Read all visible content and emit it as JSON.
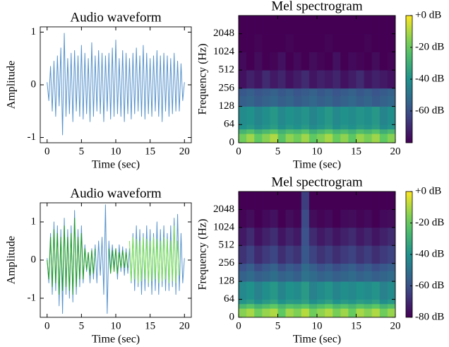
{
  "chart_data": [
    {
      "type": "line",
      "title": "Audio waveform",
      "xlabel": "Time (sec)",
      "ylabel": "Amplitude",
      "x": [
        0,
        0.25,
        0.5,
        0.75,
        1,
        1.25,
        1.5,
        1.75,
        2,
        2.25,
        2.5,
        2.75,
        3,
        3.25,
        3.5,
        3.75,
        4,
        4.25,
        4.5,
        4.75,
        5,
        5.25,
        5.5,
        5.75,
        6,
        6.25,
        6.5,
        6.75,
        7,
        7.25,
        7.5,
        7.75,
        8,
        8.25,
        8.5,
        8.75,
        9,
        9.25,
        9.5,
        9.75,
        10,
        10.25,
        10.5,
        10.75,
        11,
        11.25,
        11.5,
        11.75,
        12,
        12.25,
        12.5,
        12.75,
        13,
        13.25,
        13.5,
        13.75,
        14,
        14.25,
        14.5,
        14.75,
        15,
        15.25,
        15.5,
        15.75,
        16,
        16.25,
        16.5,
        16.75,
        17,
        17.25,
        17.5,
        17.75,
        18,
        18.25,
        18.5,
        18.75,
        19,
        19.25,
        19.5,
        19.75,
        20
      ],
      "series": [
        {
          "color": "#5a94cc",
          "values": [
            0.05,
            -0.3,
            0.35,
            -0.5,
            0.45,
            -0.6,
            0.55,
            -0.4,
            0.7,
            -0.95,
            0.98,
            -0.6,
            0.5,
            -0.55,
            0.6,
            -0.7,
            0.65,
            -0.5,
            0.55,
            -0.6,
            0.75,
            -0.65,
            0.6,
            -0.55,
            0.5,
            -0.7,
            0.8,
            -0.6,
            0.55,
            -0.5,
            0.65,
            -0.55,
            0.6,
            -0.7,
            0.55,
            -0.5,
            0.6,
            -0.65,
            0.7,
            -0.6,
            0.85,
            -0.55,
            0.5,
            -0.6,
            0.65,
            -0.7,
            0.6,
            -0.55,
            0.5,
            -0.65,
            0.6,
            -0.55,
            0.7,
            -0.5,
            0.55,
            -0.6,
            0.75,
            -0.65,
            0.6,
            -0.55,
            0.5,
            -0.6,
            0.55,
            -0.5,
            0.65,
            -0.6,
            0.55,
            -0.7,
            0.6,
            -0.5,
            0.55,
            -0.6,
            0.5,
            -0.55,
            0.6,
            -0.5,
            0.45,
            -0.5,
            0.4,
            -0.3,
            0.05
          ]
        }
      ],
      "xlim": [
        -1,
        21
      ],
      "xticks": [
        0,
        5,
        10,
        15,
        20
      ],
      "ylim": [
        -1.1,
        1.1
      ],
      "yticks": [
        -1,
        0,
        1
      ]
    },
    {
      "type": "heatmap",
      "title": "Mel spectrogram",
      "xlabel": "Time (sec)",
      "ylabel": "Frequency (Hz)",
      "colormap": "viridis",
      "clim": [
        -80,
        0
      ],
      "yscale": "symlog",
      "linthresh": 64,
      "base": 2,
      "x_edges": [
        0,
        1,
        2,
        3,
        4,
        5,
        6,
        7,
        8,
        9,
        10,
        11,
        12,
        13,
        14,
        15,
        16,
        17,
        18,
        19,
        20
      ],
      "y_edges": [
        0,
        32,
        48,
        64,
        128,
        192,
        256,
        512,
        1024,
        2048,
        4096
      ],
      "values": [
        [
          -18,
          -12,
          -20,
          -15,
          -10,
          -22,
          -14,
          -18,
          -12,
          -20,
          -16,
          -11,
          -19,
          -14,
          -21,
          -13,
          -17,
          -12,
          -20,
          -15
        ],
        [
          -28,
          -24,
          -30,
          -26,
          -22,
          -29,
          -25,
          -27,
          -23,
          -30,
          -26,
          -22,
          -28,
          -25,
          -29,
          -24,
          -27,
          -23,
          -30,
          -26
        ],
        [
          -40,
          -38,
          -42,
          -39,
          -36,
          -41,
          -38,
          -40,
          -37,
          -42,
          -39,
          -36,
          -41,
          -38,
          -40,
          -37,
          -39,
          -36,
          -42,
          -39
        ],
        [
          -42,
          -40,
          -44,
          -41,
          -38,
          -43,
          -40,
          -42,
          -39,
          -44,
          -41,
          -38,
          -43,
          -40,
          -42,
          -39,
          -41,
          -38,
          -44,
          -41
        ],
        [
          -56,
          -54,
          -57,
          -55,
          -53,
          -56,
          -54,
          -57,
          -55,
          -53,
          -56,
          -54,
          -57,
          -55,
          -53,
          -56,
          -54,
          -57,
          -55,
          -53
        ],
        [
          -58,
          -56,
          -59,
          -57,
          -55,
          -58,
          -56,
          -59,
          -57,
          -55,
          -58,
          -56,
          -59,
          -57,
          -55,
          -58,
          -56,
          -59,
          -57,
          -55
        ],
        [
          -76,
          -72,
          -75,
          -70,
          -74,
          -71,
          -76,
          -73,
          -70,
          -75,
          -72,
          -74,
          -71,
          -76,
          -73,
          -70,
          -75,
          -72,
          -74,
          -76
        ],
        [
          -78,
          -80,
          -77,
          -80,
          -79,
          -76,
          -80,
          -78,
          -80,
          -77,
          -79,
          -80,
          -76,
          -80,
          -78,
          -79,
          -80,
          -77,
          -80,
          -79
        ],
        [
          -80,
          -80,
          -79,
          -80,
          -80,
          -80,
          -79,
          -80,
          -80,
          -80,
          -80,
          -79,
          -80,
          -80,
          -80,
          -80,
          -79,
          -80,
          -80,
          -80
        ],
        [
          -80,
          -80,
          -80,
          -80,
          -80,
          -80,
          -80,
          -80,
          -80,
          -80,
          -80,
          -80,
          -80,
          -80,
          -80,
          -80,
          -80,
          -80,
          -80,
          -80
        ]
      ],
      "xlim": [
        0,
        20
      ],
      "xticks": [
        0,
        5,
        10,
        15,
        20
      ],
      "ylim": [
        0,
        4096
      ],
      "yticks": [
        0,
        64,
        128,
        256,
        512,
        1024,
        2048
      ],
      "cticks": [
        {
          "value": 0,
          "label": "+0 dB"
        },
        {
          "value": -20,
          "label": "-20 dB"
        },
        {
          "value": -40,
          "label": "-40 dB"
        },
        {
          "value": -60,
          "label": "-60 dB"
        }
      ]
    },
    {
      "type": "line",
      "title": "Audio waveform",
      "xlabel": "Time (sec)",
      "ylabel": "Amplitude",
      "x": [
        0,
        0.25,
        0.5,
        0.75,
        1,
        1.25,
        1.5,
        1.75,
        2,
        2.25,
        2.5,
        2.75,
        3,
        3.25,
        3.5,
        3.75,
        4,
        4.25,
        4.5,
        4.75,
        5,
        5.25,
        5.5,
        5.75,
        6,
        6.25,
        6.5,
        6.75,
        7,
        7.25,
        7.5,
        7.75,
        8,
        8.25,
        8.5,
        8.75,
        9,
        9.25,
        9.5,
        9.75,
        10,
        10.25,
        10.5,
        10.75,
        11,
        11.25,
        11.5,
        11.75,
        12,
        12.25,
        12.5,
        12.75,
        13,
        13.25,
        13.5,
        13.75,
        14,
        14.25,
        14.5,
        14.75,
        15,
        15.25,
        15.5,
        15.75,
        16,
        16.25,
        16.5,
        16.75,
        17,
        17.25,
        17.5,
        17.75,
        18,
        18.25,
        18.5,
        18.75,
        19,
        19.25,
        19.5,
        19.75,
        20
      ],
      "series": [
        {
          "color": "#5a94cc",
          "values": [
            0.05,
            -0.6,
            0.7,
            -0.9,
            1.0,
            -0.8,
            0.9,
            -1.2,
            0.8,
            -1.4,
            1.1,
            -0.9,
            0.8,
            -1.0,
            0.9,
            -1.1,
            1.3,
            -0.9,
            0.8,
            -0.7,
            0.9,
            -0.6,
            0.4,
            -0.3,
            0.2,
            -0.6,
            0.3,
            -0.5,
            0.4,
            -0.6,
            0.5,
            -0.4,
            0.6,
            -0.9,
            1.45,
            -1.4,
            0.5,
            -0.3,
            0.4,
            -0.2,
            0.3,
            -0.5,
            0.4,
            -0.3,
            0.35,
            -0.4,
            0.3,
            -0.35,
            0.3,
            -0.6,
            0.7,
            -0.8,
            0.9,
            -0.7,
            0.8,
            -0.9,
            0.7,
            -0.8,
            0.9,
            -0.7,
            0.8,
            -0.9,
            0.7,
            -0.8,
            1.0,
            -0.9,
            0.8,
            -0.7,
            0.9,
            -0.8,
            0.7,
            -0.8,
            0.9,
            -0.7,
            1.1,
            -0.9,
            1.2,
            -0.8,
            0.7,
            -0.6,
            0.05
          ]
        },
        {
          "color": "#1f9e1f",
          "values": [
            0.0,
            -0.5,
            0.6,
            -0.7,
            0.8,
            -0.6,
            0.7,
            -0.9,
            0.6,
            -0.8,
            0.9,
            -0.7,
            0.6,
            -0.8,
            0.7,
            -0.9,
            1.1,
            -0.7,
            0.6,
            -0.5,
            0.7,
            -0.5,
            0.3,
            -0.25,
            0.2,
            -0.4,
            0.25,
            -0.35,
            0.3,
            null,
            null,
            null,
            null,
            null,
            null,
            null,
            0.3,
            -0.35,
            0.25,
            -0.3,
            0.3,
            -0.35,
            0.2,
            -0.2,
            0.25,
            -0.2,
            0.2,
            -0.2,
            null,
            null,
            null,
            null,
            null,
            null,
            null,
            null,
            null,
            null,
            null,
            null,
            null,
            null,
            null,
            null,
            null,
            null,
            null,
            null,
            null,
            null,
            null,
            null,
            null,
            null,
            null,
            null,
            null,
            null,
            null,
            null,
            null
          ]
        },
        {
          "color": "#76e24a",
          "values": [
            null,
            null,
            null,
            null,
            null,
            null,
            null,
            null,
            null,
            null,
            null,
            null,
            null,
            null,
            null,
            null,
            null,
            null,
            null,
            null,
            null,
            null,
            null,
            null,
            null,
            null,
            null,
            null,
            null,
            null,
            null,
            null,
            null,
            null,
            null,
            null,
            null,
            null,
            null,
            null,
            null,
            null,
            null,
            null,
            null,
            null,
            null,
            null,
            0.5,
            -0.55,
            0.6,
            -0.5,
            0.55,
            -0.6,
            0.5,
            -0.55,
            0.6,
            -0.5,
            0.55,
            -0.6,
            0.5,
            -0.55,
            0.6,
            -0.5,
            0.55,
            -0.6,
            0.5,
            -0.55,
            0.6,
            -0.5,
            0.55,
            -0.6,
            0.5,
            -0.55,
            0.9,
            -0.6,
            0.5,
            -0.4,
            null,
            null,
            null
          ]
        }
      ],
      "xlim": [
        -1,
        21
      ],
      "xticks": [
        0,
        5,
        10,
        15,
        20
      ],
      "ylim": [
        -1.5,
        1.5
      ],
      "yticks": [
        -1,
        0,
        1
      ]
    },
    {
      "type": "heatmap",
      "title": "Mel spectrogram",
      "xlabel": "Time (sec)",
      "ylabel": "Frequency (Hz)",
      "colormap": "viridis",
      "clim": [
        -80,
        0
      ],
      "yscale": "symlog",
      "linthresh": 64,
      "base": 2,
      "x_edges": [
        0,
        1,
        2,
        3,
        4,
        5,
        6,
        7,
        8,
        9,
        10,
        11,
        12,
        13,
        14,
        15,
        16,
        17,
        18,
        19,
        20
      ],
      "y_edges": [
        0,
        32,
        48,
        64,
        128,
        192,
        256,
        512,
        1024,
        2048,
        4096
      ],
      "values": [
        [
          -15,
          -11,
          -18,
          -13,
          -10,
          -20,
          -12,
          -16,
          -9,
          -18,
          -14,
          -10,
          -17,
          -12,
          -19,
          -11,
          -15,
          -10,
          -18,
          -13
        ],
        [
          -26,
          -22,
          -28,
          -24,
          -20,
          -27,
          -23,
          -25,
          -21,
          -28,
          -24,
          -20,
          -26,
          -23,
          -27,
          -22,
          -25,
          -21,
          -28,
          -24
        ],
        [
          -39,
          -36,
          -41,
          -37,
          -34,
          -40,
          -37,
          -38,
          -35,
          -41,
          -38,
          -35,
          -40,
          -37,
          -39,
          -36,
          -38,
          -35,
          -41,
          -38
        ],
        [
          -43,
          -40,
          -45,
          -41,
          -38,
          -44,
          -40,
          -42,
          -37,
          -45,
          -42,
          -39,
          -44,
          -41,
          -43,
          -40,
          -42,
          -39,
          -45,
          -42
        ],
        [
          -55,
          -52,
          -56,
          -54,
          -51,
          -55,
          -53,
          -56,
          -50,
          -52,
          -55,
          -53,
          -56,
          -54,
          -52,
          -55,
          -53,
          -56,
          -54,
          -52
        ],
        [
          -60,
          -56,
          -62,
          -58,
          -55,
          -61,
          -57,
          -60,
          -52,
          -56,
          -60,
          -57,
          -61,
          -58,
          -56,
          -60,
          -57,
          -61,
          -58,
          -56
        ],
        [
          -68,
          -64,
          -70,
          -66,
          -63,
          -69,
          -65,
          -68,
          -58,
          -64,
          -68,
          -65,
          -69,
          -66,
          -64,
          -68,
          -65,
          -69,
          -66,
          -64
        ],
        [
          -74,
          -70,
          -76,
          -72,
          -69,
          -75,
          -71,
          -74,
          -60,
          -70,
          -74,
          -71,
          -75,
          -72,
          -70,
          -74,
          -71,
          -75,
          -72,
          -70
        ],
        [
          -79,
          -77,
          -80,
          -78,
          -76,
          -80,
          -77,
          -79,
          -62,
          -77,
          -79,
          -78,
          -80,
          -78,
          -77,
          -79,
          -78,
          -80,
          -78,
          -77
        ],
        [
          -80,
          -80,
          -80,
          -80,
          -80,
          -80,
          -80,
          -80,
          -65,
          -80,
          -80,
          -80,
          -80,
          -80,
          -80,
          -80,
          -80,
          -80,
          -80,
          -80
        ]
      ],
      "xlim": [
        0,
        20
      ],
      "xticks": [
        0,
        5,
        10,
        15,
        20
      ],
      "ylim": [
        0,
        4096
      ],
      "yticks": [
        0,
        64,
        128,
        256,
        512,
        1024,
        2048
      ],
      "cticks": [
        {
          "value": 0,
          "label": "+0 dB"
        },
        {
          "value": -20,
          "label": "-20 dB"
        },
        {
          "value": -40,
          "label": "-40 dB"
        },
        {
          "value": -60,
          "label": "-60 dB"
        },
        {
          "value": -80,
          "label": "-80 dB"
        }
      ]
    }
  ]
}
